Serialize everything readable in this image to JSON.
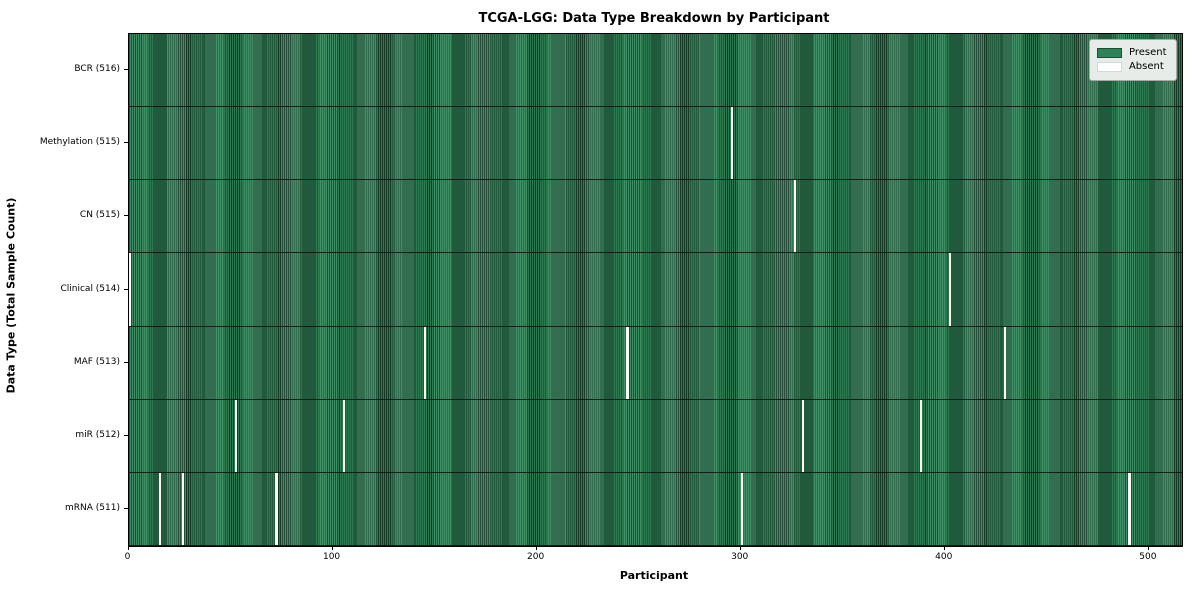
{
  "title": "TCGA-LGG: Data Type Breakdown by Participant",
  "xlabel": "Participant",
  "ylabel": "Data Type (Total Sample Count)",
  "legend": {
    "present_label": "Present",
    "absent_label": "Absent"
  },
  "colors": {
    "present": "#2f8257",
    "present_edge": "#16402a",
    "absent": "#fcfcf6"
  },
  "chart_data": {
    "type": "heatmap",
    "title": "TCGA-LGG: Data Type Breakdown by Participant",
    "xlabel": "Participant",
    "ylabel": "Data Type (Total Sample Count)",
    "xlim": [
      0,
      516
    ],
    "x_ticks": [
      0,
      100,
      200,
      300,
      400,
      500
    ],
    "grid": false,
    "legend_entries": [
      "Present",
      "Absent"
    ],
    "legend_position": "upper right",
    "total_participants": 516,
    "rows": [
      {
        "label": "BCR (516)",
        "data_type": "BCR",
        "sample_count": 516,
        "absent_participants": []
      },
      {
        "label": "Methylation (515)",
        "data_type": "Methylation",
        "sample_count": 515,
        "absent_participants": [
          295
        ]
      },
      {
        "label": "CN (515)",
        "data_type": "CN",
        "sample_count": 515,
        "absent_participants": [
          326
        ]
      },
      {
        "label": "Clinical (514)",
        "data_type": "Clinical",
        "sample_count": 514,
        "absent_participants": [
          0,
          402
        ]
      },
      {
        "label": "MAF (513)",
        "data_type": "MAF",
        "sample_count": 513,
        "absent_participants": [
          145,
          244,
          429
        ]
      },
      {
        "label": "miR (512)",
        "data_type": "miR",
        "sample_count": 512,
        "absent_participants": [
          52,
          105,
          330,
          388
        ]
      },
      {
        "label": "mRNA (511)",
        "data_type": "mRNA",
        "sample_count": 511,
        "absent_participants": [
          15,
          26,
          72,
          300,
          490
        ]
      }
    ]
  }
}
